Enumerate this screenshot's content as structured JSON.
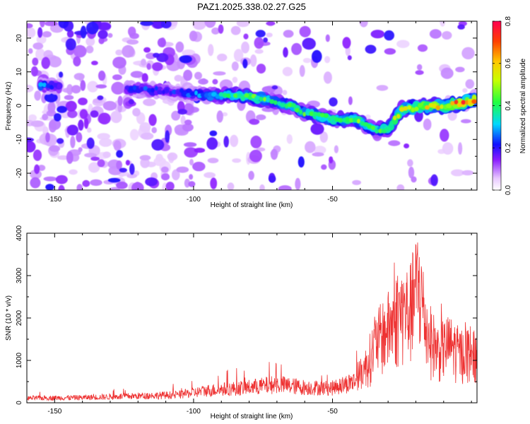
{
  "title": "PAZ1.2025.338.02.27.G25",
  "chart_data": [
    {
      "type": "heatmap",
      "title": "PAZ1.2025.338.02.27.G25",
      "xlabel": "Height of straight line (km)",
      "ylabel": "Frequency (Hz)",
      "xlim": [
        -160,
        2
      ],
      "ylim": [
        -25,
        25
      ],
      "xticks": [
        -150,
        -100,
        -50
      ],
      "yticks": [
        -20,
        -10,
        0,
        10,
        20
      ],
      "colorbar": {
        "label": "Normalized spectral amplitude",
        "range": [
          0,
          0.8
        ],
        "ticks": [
          0.0,
          0.2,
          0.4,
          0.6,
          0.8
        ]
      },
      "ridge": {
        "description_points": [
          {
            "x": -155,
            "f": 6,
            "amp": 0.3
          },
          {
            "x": -140,
            "f": 5,
            "amp": 0.12
          },
          {
            "x": -120,
            "f": 5,
            "amp": 0.25
          },
          {
            "x": -105,
            "f": 4,
            "amp": 0.22
          },
          {
            "x": -95,
            "f": 3,
            "amp": 0.32
          },
          {
            "x": -85,
            "f": 3,
            "amp": 0.42
          },
          {
            "x": -75,
            "f": 2,
            "amp": 0.46
          },
          {
            "x": -70,
            "f": 1,
            "amp": 0.4
          },
          {
            "x": -65,
            "f": 0,
            "amp": 0.4
          },
          {
            "x": -60,
            "f": -2,
            "amp": 0.44
          },
          {
            "x": -55,
            "f": -3,
            "amp": 0.45
          },
          {
            "x": -50,
            "f": -4,
            "amp": 0.42
          },
          {
            "x": -42,
            "f": -4,
            "amp": 0.5
          },
          {
            "x": -36,
            "f": -7,
            "amp": 0.42
          },
          {
            "x": -30,
            "f": -7,
            "amp": 0.45
          },
          {
            "x": -25,
            "f": -1,
            "amp": 0.55
          },
          {
            "x": -15,
            "f": 0,
            "amp": 0.58
          },
          {
            "x": -8,
            "f": 0,
            "amp": 0.62
          },
          {
            "x": -3,
            "f": 1,
            "amp": 0.78
          },
          {
            "x": 2,
            "f": 2,
            "amp": 0.6
          }
        ]
      }
    },
    {
      "type": "line",
      "xlabel": "Height of straight line (km)",
      "ylabel": "SNR (10 * v/v)",
      "xlim": [
        -160,
        2
      ],
      "ylim": [
        0,
        4000
      ],
      "xticks": [
        -150,
        -100,
        -50
      ],
      "yticks": [
        0,
        1000,
        2000,
        3000,
        4000
      ],
      "color": "#ee3333",
      "envelope": [
        {
          "x": -160,
          "snr": 150
        },
        {
          "x": -140,
          "snr": 170
        },
        {
          "x": -120,
          "snr": 220
        },
        {
          "x": -105,
          "snr": 260
        },
        {
          "x": -95,
          "snr": 400
        },
        {
          "x": -80,
          "snr": 500
        },
        {
          "x": -70,
          "snr": 600
        },
        {
          "x": -60,
          "snr": 500
        },
        {
          "x": -50,
          "snr": 480
        },
        {
          "x": -42,
          "snr": 700
        },
        {
          "x": -38,
          "snr": 1200
        },
        {
          "x": -34,
          "snr": 2000
        },
        {
          "x": -30,
          "snr": 2400
        },
        {
          "x": -26,
          "snr": 2900
        },
        {
          "x": -22,
          "snr": 3000
        },
        {
          "x": -19,
          "snr": 3900
        },
        {
          "x": -16,
          "snr": 2300
        },
        {
          "x": -12,
          "snr": 1700
        },
        {
          "x": -8,
          "snr": 1900
        },
        {
          "x": -4,
          "snr": 1600
        },
        {
          "x": 0,
          "snr": 1700
        },
        {
          "x": 2,
          "snr": 1400
        }
      ]
    }
  ]
}
